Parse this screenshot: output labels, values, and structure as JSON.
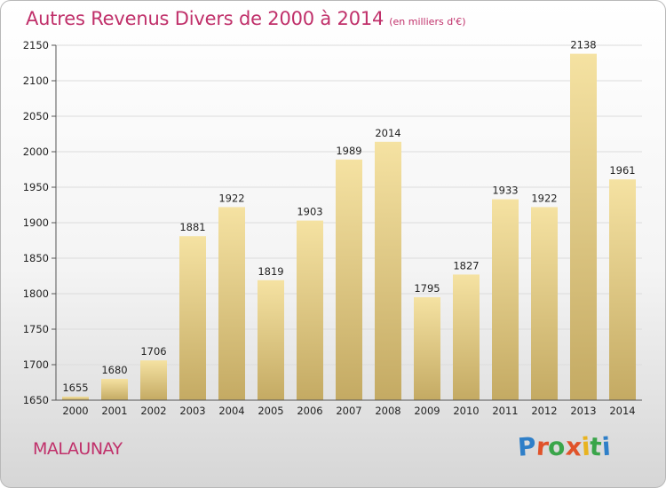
{
  "header": {
    "title": "Autres Revenus Divers de 2000 à 2014",
    "subtitle": "(en milliers d'€)"
  },
  "footer": {
    "commune": "MALAUNAY",
    "brand": "Proxiti",
    "brand_colors": [
      "#2f7fc8",
      "#e0532a",
      "#3aa54a",
      "#e0532a",
      "#e8b320",
      "#3aa54a",
      "#2f7fc8"
    ]
  },
  "colors": {
    "title": "#c0306a",
    "bar_top": "#f5e2a2",
    "bar_bottom": "#c4aa63",
    "grid": "#dcdcdc"
  },
  "chart_data": {
    "type": "bar",
    "title": "Autres Revenus Divers de 2000 à 2014",
    "xlabel": "",
    "ylabel": "",
    "categories": [
      "2000",
      "2001",
      "2002",
      "2003",
      "2004",
      "2005",
      "2006",
      "2007",
      "2008",
      "2009",
      "2010",
      "2011",
      "2012",
      "2013",
      "2014"
    ],
    "values": [
      1655,
      1680,
      1706,
      1881,
      1922,
      1819,
      1903,
      1989,
      2014,
      1795,
      1827,
      1933,
      1922,
      2138,
      1961
    ],
    "ylim": [
      1650,
      2150
    ],
    "yticks": [
      1650,
      1700,
      1750,
      1800,
      1850,
      1900,
      1950,
      2000,
      2050,
      2100,
      2150
    ],
    "grid": true,
    "data_labels": true
  }
}
